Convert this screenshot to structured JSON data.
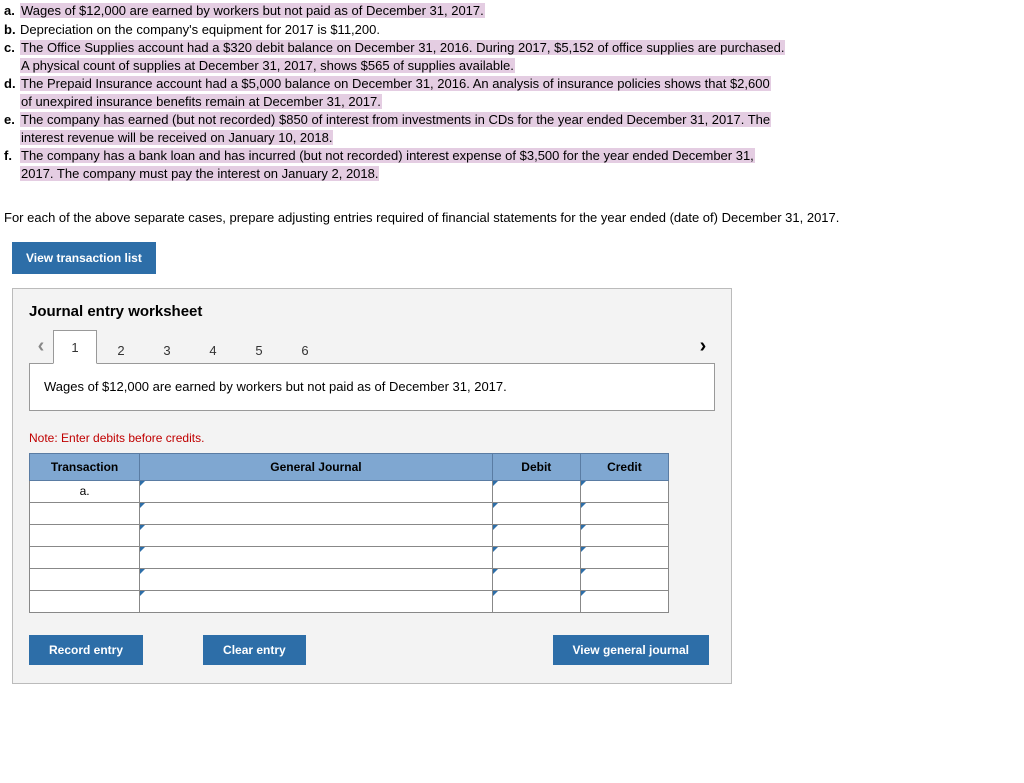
{
  "problems": [
    {
      "letter": "a.",
      "segments": [
        {
          "t": "Wages of $12,000 are earned by workers but not paid as of December 31, 2017.",
          "hl": true
        }
      ]
    },
    {
      "letter": "b.",
      "segments": [
        {
          "t": "Depreciation on the company's equipment for 2017 is $11,200.",
          "hl": false
        }
      ]
    },
    {
      "letter": "c.",
      "segments": [
        {
          "t": "The Office Supplies account had a $320 debit balance on December 31, 2016. During 2017, $5,152 of office supplies are purchased.",
          "hl": true
        },
        {
          "t": " ",
          "hl": false
        },
        {
          "br": true
        },
        {
          "t": "A physical count of supplies at December 31, 2017, shows $565 of supplies available.",
          "hl": true
        }
      ]
    },
    {
      "letter": "d.",
      "segments": [
        {
          "t": "The Prepaid Insurance account had a $5,000 balance on December 31, 2016. An analysis of insurance policies shows that $2,600",
          "hl": true
        },
        {
          "br": true
        },
        {
          "t": "of unexpired insurance benefits remain at December 31, 2017.",
          "hl": true
        }
      ]
    },
    {
      "letter": "e.",
      "segments": [
        {
          "t": "The company has earned (but not recorded) $850 of interest from investments in CDs for the year ended December 31, 2017. The",
          "hl": true
        },
        {
          "br": true
        },
        {
          "t": "interest revenue will be received on January 10, 2018.",
          "hl": true
        }
      ]
    },
    {
      "letter": "f.",
      "segments": [
        {
          "t": "The company has a bank loan and has incurred (but not recorded) interest expense of $3,500 for the year ended December 31,",
          "hl": true
        },
        {
          "br": true
        },
        {
          "t": "2017. The company must pay the interest on January 2, 2018.",
          "hl": true
        }
      ]
    }
  ],
  "instruction": "For each of the above separate cases, prepare adjusting entries required of financial statements for the year ended (date of) December 31, 2017.",
  "buttons": {
    "view_list": "View transaction list",
    "record": "Record entry",
    "clear": "Clear entry",
    "view_journal": "View general journal"
  },
  "worksheet": {
    "title": "Journal entry worksheet",
    "tabs": [
      "1",
      "2",
      "3",
      "4",
      "5",
      "6"
    ],
    "active_tab": 0,
    "description": "Wages of $12,000 are earned by workers but not paid as of December 31, 2017.",
    "note": "Note: Enter debits before credits.",
    "headers": {
      "transaction": "Transaction",
      "gj": "General Journal",
      "debit": "Debit",
      "credit": "Credit"
    },
    "rows": [
      {
        "trans": "a.",
        "gj": "",
        "debit": "",
        "credit": ""
      },
      {
        "trans": "",
        "gj": "",
        "debit": "",
        "credit": ""
      },
      {
        "trans": "",
        "gj": "",
        "debit": "",
        "credit": ""
      },
      {
        "trans": "",
        "gj": "",
        "debit": "",
        "credit": ""
      },
      {
        "trans": "",
        "gj": "",
        "debit": "",
        "credit": ""
      },
      {
        "trans": "",
        "gj": "",
        "debit": "",
        "credit": ""
      }
    ]
  },
  "colors": {
    "highlight": "#e4cde2",
    "button_blue": "#2d6ea8",
    "header_blue": "#7fa7d1",
    "note_red": "#c00000"
  }
}
